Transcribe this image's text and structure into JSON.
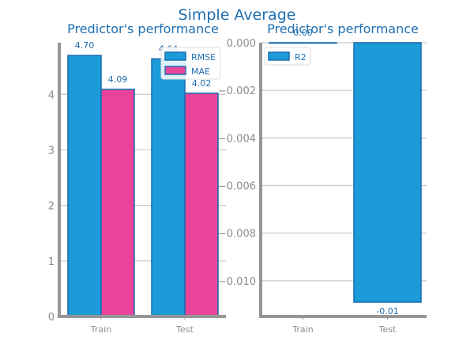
{
  "figure": {
    "suptitle": "Simple Average"
  },
  "colors": {
    "title": "#1f6fb2",
    "bar_blue": "#1b9bd7",
    "bar_pink": "#e8459a",
    "bar_edge": "#1f6fb2",
    "tick": "#8c8c8c",
    "grid": "#c8c8c8",
    "spine": "#969696"
  },
  "chart_data": [
    {
      "type": "bar",
      "title": "Predictor's performance",
      "categories": [
        "Train",
        "Test"
      ],
      "series": [
        {
          "name": "RMSE",
          "values": [
            4.7,
            4.64
          ],
          "labels": [
            "4.70",
            "4.64"
          ],
          "color": "#1b9bd7"
        },
        {
          "name": "MAE",
          "values": [
            4.09,
            4.02
          ],
          "labels": [
            "4.09",
            "4.02"
          ],
          "color": "#e8459a"
        }
      ],
      "ylim": [
        0,
        4.93
      ],
      "yticks": [
        0,
        1,
        2,
        3,
        4
      ],
      "ytick_labels": [
        "0",
        "1",
        "2",
        "3",
        "4"
      ],
      "grid": "horizontal",
      "legend": "top-right"
    },
    {
      "type": "bar",
      "title": "Predictor's performance",
      "categories": [
        "Train",
        "Test"
      ],
      "series": [
        {
          "name": "R2",
          "values": [
            0.0,
            -0.0109
          ],
          "labels": [
            "0.00",
            "-0.01"
          ],
          "color": "#1b9bd7"
        }
      ],
      "ylim": [
        -0.0115,
        0.0
      ],
      "yticks": [
        0.0,
        -0.002,
        -0.004,
        -0.006,
        -0.008,
        -0.01
      ],
      "ytick_labels": [
        "0.000",
        "−0.002",
        "−0.004",
        "−0.006",
        "−0.008",
        "−0.010"
      ],
      "grid": "horizontal",
      "legend": "top-left"
    }
  ]
}
